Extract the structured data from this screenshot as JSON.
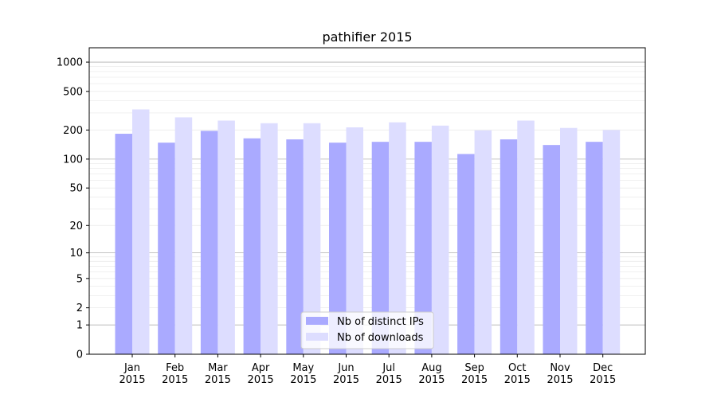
{
  "chart_data": {
    "type": "bar",
    "title": "pathifier 2015",
    "xlabel": "",
    "ylabel": "",
    "yscale": "symlog",
    "ylim": [
      0,
      1300
    ],
    "yticks": [
      0,
      1,
      2,
      5,
      10,
      20,
      50,
      100,
      200,
      500,
      1000
    ],
    "grid": true,
    "legend_position": "bottom-center",
    "categories": [
      "Jan\n2015",
      "Feb\n2015",
      "Mar\n2015",
      "Apr\n2015",
      "May\n2015",
      "Jun\n2015",
      "Jul\n2015",
      "Aug\n2015",
      "Sep\n2015",
      "Oct\n2015",
      "Nov\n2015",
      "Dec\n2015"
    ],
    "series": [
      {
        "name": "Nb of distinct IPs",
        "color": "#aaaaff",
        "values": [
          183,
          148,
          196,
          164,
          160,
          148,
          151,
          151,
          113,
          160,
          140,
          151
        ]
      },
      {
        "name": "Nb of downloads",
        "color": "#ddddff",
        "values": [
          326,
          270,
          250,
          235,
          235,
          213,
          240,
          222,
          198,
          250,
          210,
          200
        ]
      }
    ]
  }
}
